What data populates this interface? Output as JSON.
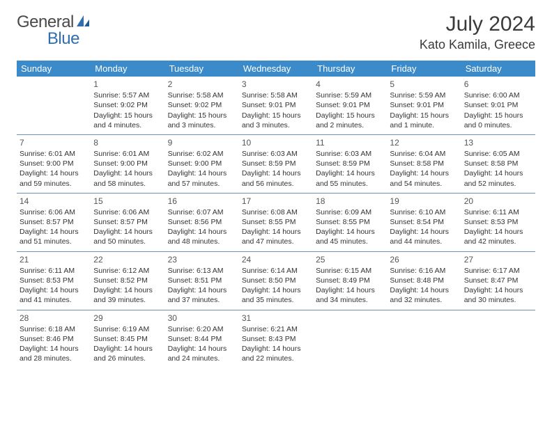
{
  "brand": {
    "word1": "General",
    "word2": "Blue"
  },
  "title": "July 2024",
  "location": "Kato Kamila, Greece",
  "header_bg": "#3b8bca",
  "header_text": "#ffffff",
  "rule_color": "#6a94bd",
  "body_text": "#333333",
  "logo_accent": "#2f6fb0",
  "font_family": "Arial",
  "title_fontsize_pt": 22,
  "location_fontsize_pt": 14,
  "dayhdr_fontsize_pt": 10,
  "cell_fontsize_pt": 8,
  "columns": [
    "Sunday",
    "Monday",
    "Tuesday",
    "Wednesday",
    "Thursday",
    "Friday",
    "Saturday"
  ],
  "weeks": [
    [
      null,
      {
        "n": "1",
        "sr": "5:57 AM",
        "ss": "9:02 PM",
        "dl": "15 hours and 4 minutes."
      },
      {
        "n": "2",
        "sr": "5:58 AM",
        "ss": "9:02 PM",
        "dl": "15 hours and 3 minutes."
      },
      {
        "n": "3",
        "sr": "5:58 AM",
        "ss": "9:01 PM",
        "dl": "15 hours and 3 minutes."
      },
      {
        "n": "4",
        "sr": "5:59 AM",
        "ss": "9:01 PM",
        "dl": "15 hours and 2 minutes."
      },
      {
        "n": "5",
        "sr": "5:59 AM",
        "ss": "9:01 PM",
        "dl": "15 hours and 1 minute."
      },
      {
        "n": "6",
        "sr": "6:00 AM",
        "ss": "9:01 PM",
        "dl": "15 hours and 0 minutes."
      }
    ],
    [
      {
        "n": "7",
        "sr": "6:01 AM",
        "ss": "9:00 PM",
        "dl": "14 hours and 59 minutes."
      },
      {
        "n": "8",
        "sr": "6:01 AM",
        "ss": "9:00 PM",
        "dl": "14 hours and 58 minutes."
      },
      {
        "n": "9",
        "sr": "6:02 AM",
        "ss": "9:00 PM",
        "dl": "14 hours and 57 minutes."
      },
      {
        "n": "10",
        "sr": "6:03 AM",
        "ss": "8:59 PM",
        "dl": "14 hours and 56 minutes."
      },
      {
        "n": "11",
        "sr": "6:03 AM",
        "ss": "8:59 PM",
        "dl": "14 hours and 55 minutes."
      },
      {
        "n": "12",
        "sr": "6:04 AM",
        "ss": "8:58 PM",
        "dl": "14 hours and 54 minutes."
      },
      {
        "n": "13",
        "sr": "6:05 AM",
        "ss": "8:58 PM",
        "dl": "14 hours and 52 minutes."
      }
    ],
    [
      {
        "n": "14",
        "sr": "6:06 AM",
        "ss": "8:57 PM",
        "dl": "14 hours and 51 minutes."
      },
      {
        "n": "15",
        "sr": "6:06 AM",
        "ss": "8:57 PM",
        "dl": "14 hours and 50 minutes."
      },
      {
        "n": "16",
        "sr": "6:07 AM",
        "ss": "8:56 PM",
        "dl": "14 hours and 48 minutes."
      },
      {
        "n": "17",
        "sr": "6:08 AM",
        "ss": "8:55 PM",
        "dl": "14 hours and 47 minutes."
      },
      {
        "n": "18",
        "sr": "6:09 AM",
        "ss": "8:55 PM",
        "dl": "14 hours and 45 minutes."
      },
      {
        "n": "19",
        "sr": "6:10 AM",
        "ss": "8:54 PM",
        "dl": "14 hours and 44 minutes."
      },
      {
        "n": "20",
        "sr": "6:11 AM",
        "ss": "8:53 PM",
        "dl": "14 hours and 42 minutes."
      }
    ],
    [
      {
        "n": "21",
        "sr": "6:11 AM",
        "ss": "8:53 PM",
        "dl": "14 hours and 41 minutes."
      },
      {
        "n": "22",
        "sr": "6:12 AM",
        "ss": "8:52 PM",
        "dl": "14 hours and 39 minutes."
      },
      {
        "n": "23",
        "sr": "6:13 AM",
        "ss": "8:51 PM",
        "dl": "14 hours and 37 minutes."
      },
      {
        "n": "24",
        "sr": "6:14 AM",
        "ss": "8:50 PM",
        "dl": "14 hours and 35 minutes."
      },
      {
        "n": "25",
        "sr": "6:15 AM",
        "ss": "8:49 PM",
        "dl": "14 hours and 34 minutes."
      },
      {
        "n": "26",
        "sr": "6:16 AM",
        "ss": "8:48 PM",
        "dl": "14 hours and 32 minutes."
      },
      {
        "n": "27",
        "sr": "6:17 AM",
        "ss": "8:47 PM",
        "dl": "14 hours and 30 minutes."
      }
    ],
    [
      {
        "n": "28",
        "sr": "6:18 AM",
        "ss": "8:46 PM",
        "dl": "14 hours and 28 minutes."
      },
      {
        "n": "29",
        "sr": "6:19 AM",
        "ss": "8:45 PM",
        "dl": "14 hours and 26 minutes."
      },
      {
        "n": "30",
        "sr": "6:20 AM",
        "ss": "8:44 PM",
        "dl": "14 hours and 24 minutes."
      },
      {
        "n": "31",
        "sr": "6:21 AM",
        "ss": "8:43 PM",
        "dl": "14 hours and 22 minutes."
      },
      null,
      null,
      null
    ]
  ]
}
